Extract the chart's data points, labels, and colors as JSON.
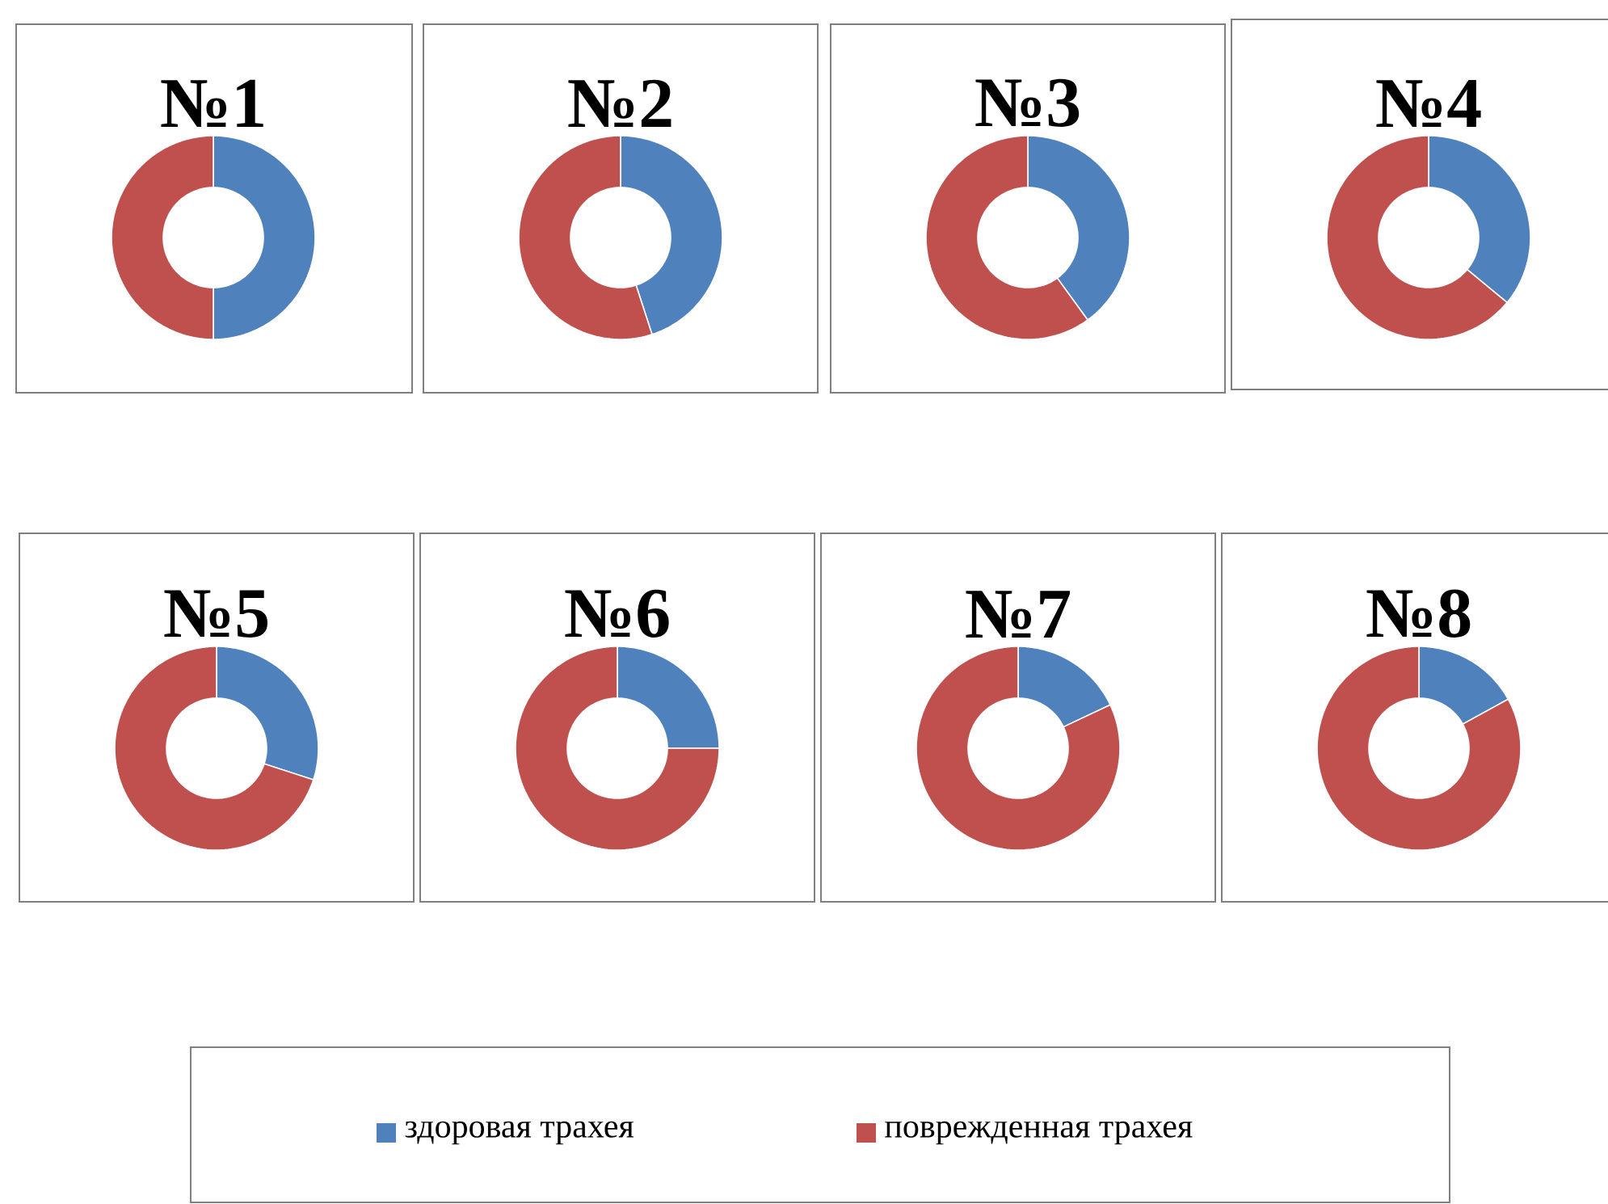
{
  "chart_data": [
    {
      "type": "donut",
      "title": "№1",
      "categories": [
        null,
        null
      ],
      "values": [
        50,
        50
      ],
      "colors": [
        "#4f81bd",
        "#c0504d"
      ]
    },
    {
      "type": "donut",
      "title": "№2",
      "categories": [
        null,
        null
      ],
      "values": [
        45,
        55
      ],
      "colors": [
        "#4f81bd",
        "#c0504d"
      ]
    },
    {
      "type": "donut",
      "title": "№3",
      "categories": [
        null,
        null
      ],
      "values": [
        40,
        60
      ],
      "colors": [
        "#4f81bd",
        "#c0504d"
      ]
    },
    {
      "type": "donut",
      "title": "№4",
      "categories": [
        null,
        null
      ],
      "values": [
        36,
        64
      ],
      "colors": [
        "#4f81bd",
        "#c0504d"
      ]
    },
    {
      "type": "donut",
      "title": "№5",
      "categories": [
        null,
        null
      ],
      "values": [
        30,
        70
      ],
      "colors": [
        "#4f81bd",
        "#c0504d"
      ]
    },
    {
      "type": "donut",
      "title": "№6",
      "categories": [
        null,
        null
      ],
      "values": [
        25,
        75
      ],
      "colors": [
        "#4f81bd",
        "#c0504d"
      ]
    },
    {
      "type": "donut",
      "title": "№7",
      "categories": [
        null,
        null
      ],
      "values": [
        18,
        82
      ],
      "colors": [
        "#4f81bd",
        "#c0504d"
      ]
    },
    {
      "type": "donut",
      "title": "№8",
      "categories": [
        "здоровая трахея",
        "поврежденная трахея"
      ],
      "values": [
        17,
        83
      ],
      "colors": [
        "#4f81bd",
        "#c0504d"
      ],
      "legend": "bottom"
    }
  ]
}
